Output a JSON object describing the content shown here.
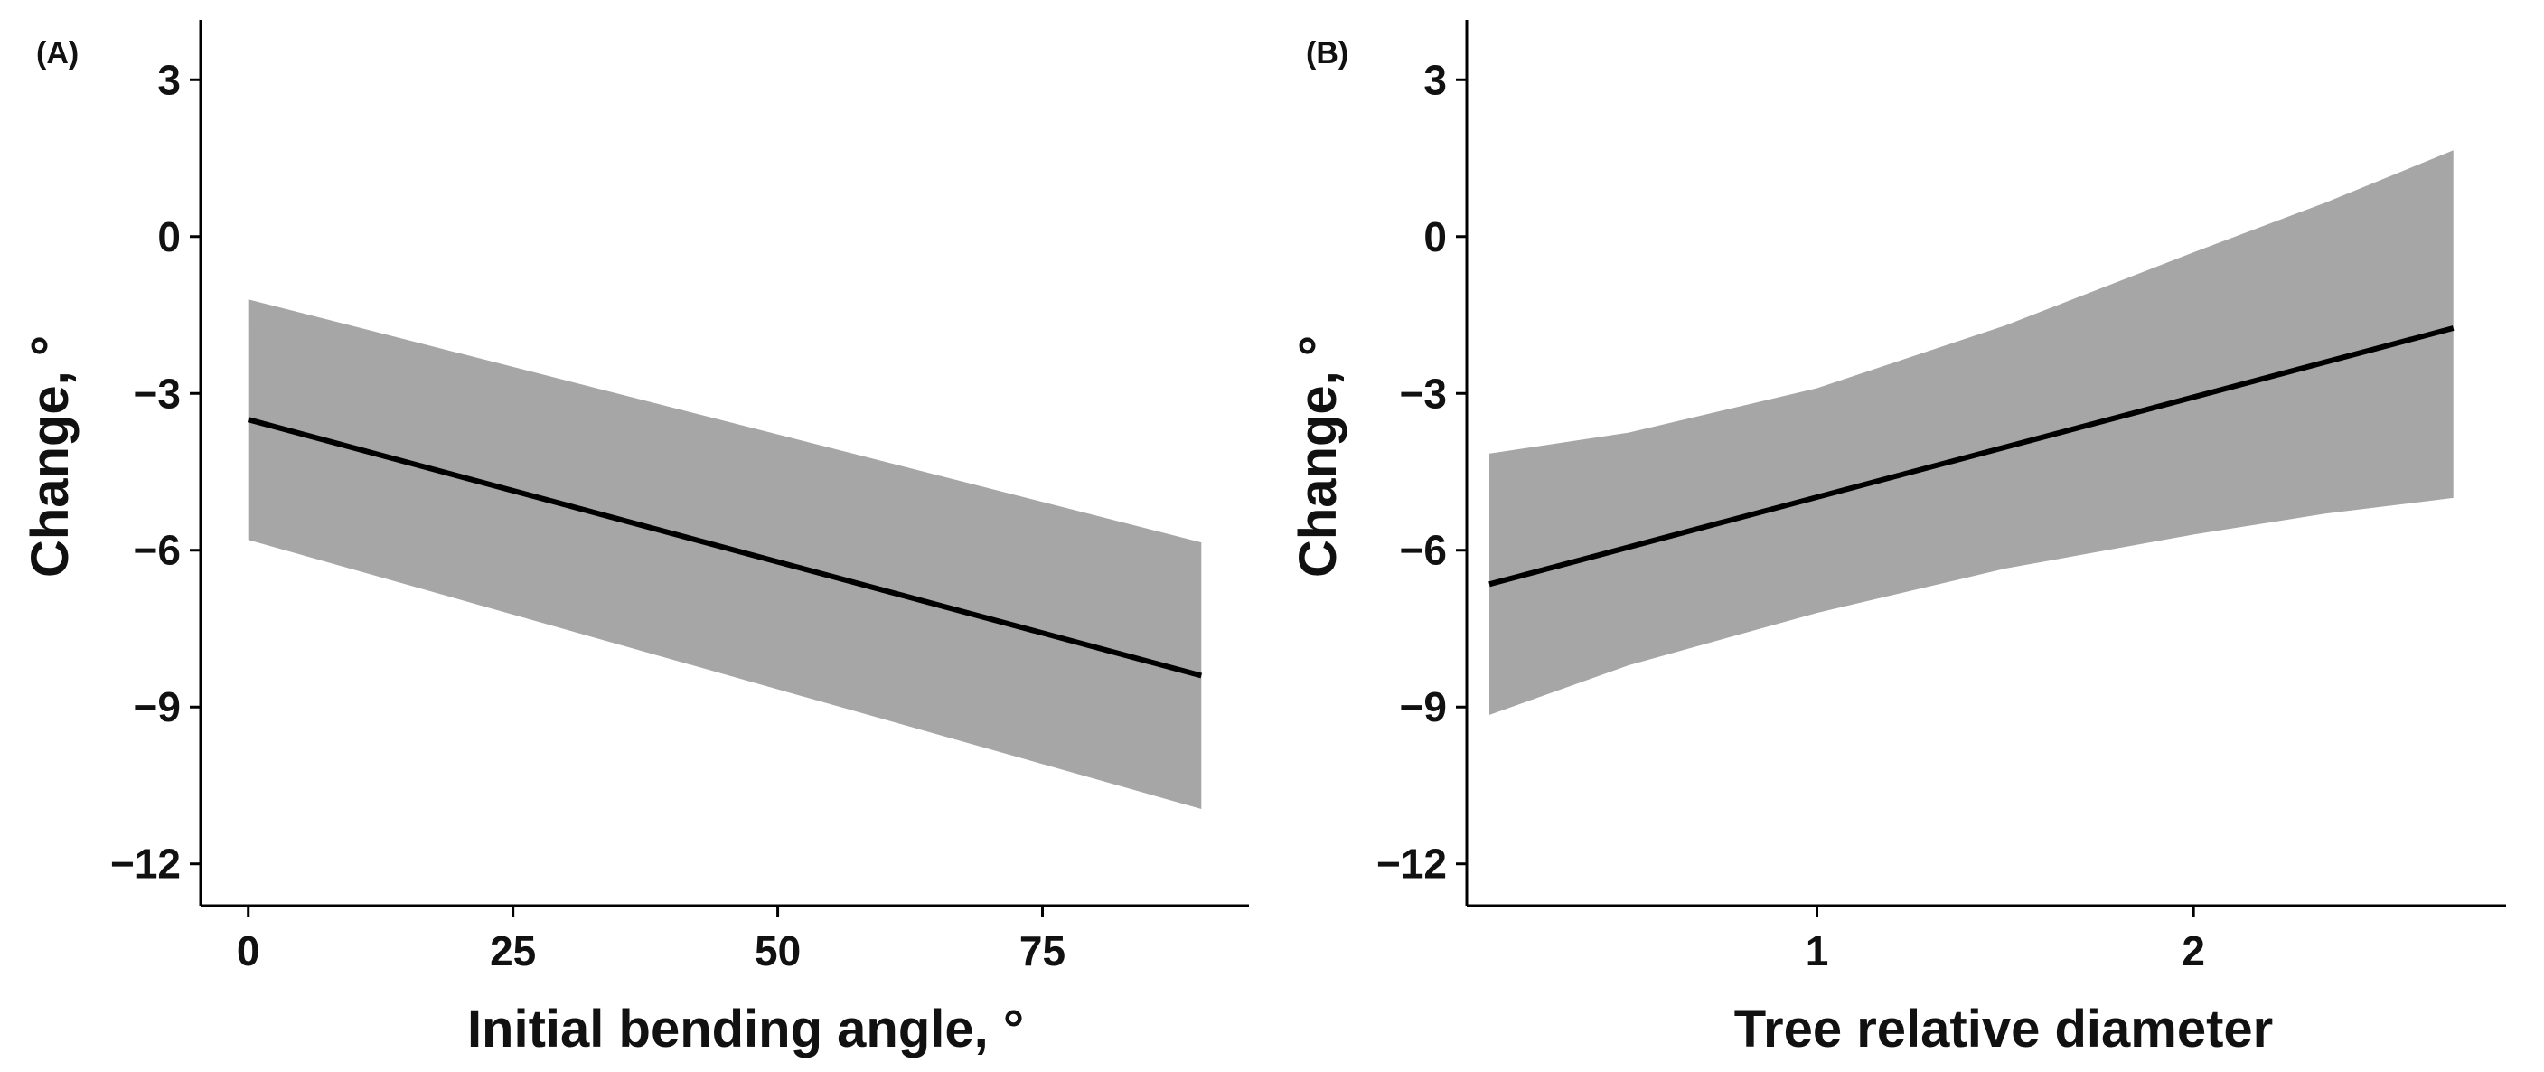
{
  "chart_data": [
    {
      "type": "line",
      "panel_label": "(A)",
      "title": "",
      "xlabel": "Initial bending angle, °",
      "ylabel": "Change, °",
      "xlim": [
        -4.5,
        94.5
      ],
      "ylim": [
        -12.8,
        3.8
      ],
      "x_ticks": [
        0,
        25,
        50,
        75
      ],
      "x_tick_labels": [
        "0",
        "25",
        "50",
        "75"
      ],
      "y_ticks": [
        3,
        0,
        -3,
        -6,
        -9,
        -12
      ],
      "y_tick_labels": [
        "3",
        "0",
        "−3",
        "−6",
        "−9",
        "−12"
      ],
      "grid": false,
      "series": [
        {
          "name": "fit",
          "x": [
            0,
            90
          ],
          "y": [
            -3.5,
            -8.4
          ],
          "color": "#000000"
        }
      ],
      "band": {
        "name": "confidence-band",
        "x": [
          0,
          90
        ],
        "lower": [
          -5.8,
          -10.95
        ],
        "upper": [
          -1.2,
          -5.85
        ],
        "color": "#a6a6a6"
      }
    },
    {
      "type": "line",
      "panel_label": "(B)",
      "title": "",
      "xlabel": "Tree relative diameter",
      "ylabel": "Change, °",
      "xlim": [
        0.07,
        2.83
      ],
      "ylim": [
        -12.8,
        3.8
      ],
      "x_ticks": [
        1,
        2
      ],
      "x_tick_labels": [
        "1",
        "2"
      ],
      "y_ticks": [
        3,
        0,
        -3,
        -6,
        -9,
        -12
      ],
      "y_tick_labels": [
        "3",
        "0",
        "−3",
        "−6",
        "−9",
        "−12"
      ],
      "grid": false,
      "series": [
        {
          "name": "fit",
          "x": [
            0.13,
            2.69
          ],
          "y": [
            -6.65,
            -1.75
          ],
          "color": "#000000"
        }
      ],
      "band": {
        "name": "confidence-band",
        "x": [
          0.13,
          0.5,
          1.0,
          1.5,
          2.0,
          2.35,
          2.69
        ],
        "lower": [
          -9.15,
          -8.2,
          -7.2,
          -6.35,
          -5.7,
          -5.3,
          -5.0
        ],
        "upper": [
          -4.15,
          -3.75,
          -2.9,
          -1.7,
          -0.3,
          0.65,
          1.65
        ],
        "color": "#a6a6a6"
      }
    }
  ]
}
